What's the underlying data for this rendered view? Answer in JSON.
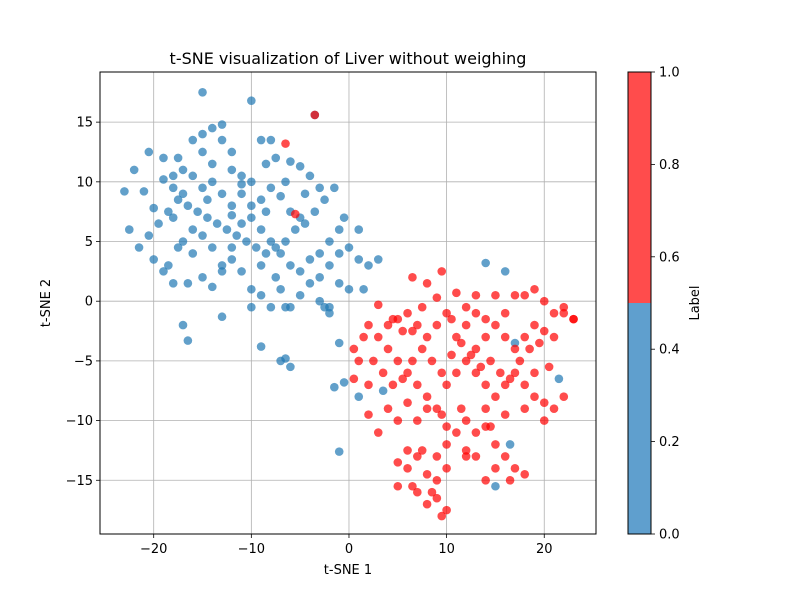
{
  "chart_data": {
    "type": "scatter",
    "title": "t-SNE visualization of Liver without weighing",
    "xlabel": "t-SNE 1",
    "ylabel": "t-SNE 2",
    "xlim": [
      -25.5,
      25.3
    ],
    "ylim": [
      -19.5,
      19.2
    ],
    "xticks": [
      -20,
      -10,
      0,
      10,
      20
    ],
    "yticks": [
      -15,
      -10,
      -5,
      0,
      5,
      10,
      15
    ],
    "xtick_labels": [
      "−20",
      "−10",
      "0",
      "10",
      "20"
    ],
    "ytick_labels": [
      "−15",
      "−10",
      "−5",
      "0",
      "5",
      "10",
      "15"
    ],
    "grid": true,
    "colorbar": {
      "label": "Label",
      "range": [
        0,
        1
      ],
      "ticks": [
        0.0,
        0.2,
        0.4,
        0.6,
        0.8,
        1.0
      ],
      "tick_labels": [
        "0.0",
        "0.2",
        "0.4",
        "0.6",
        "0.8",
        "1.0"
      ],
      "colors": [
        {
          "from": 0.0,
          "to": 0.5,
          "color": "#5f9fce"
        },
        {
          "from": 0.5,
          "to": 1.0,
          "color": "#ff4c4c"
        }
      ]
    },
    "colors": {
      "label_0": "#1f77b4",
      "label_1": "#ff0000"
    },
    "series": [
      {
        "label_value": 0,
        "points": [
          [
            -15,
            17.5
          ],
          [
            -10,
            16.8
          ],
          [
            -3.5,
            15.6
          ],
          [
            -23,
            9.2
          ],
          [
            -22,
            11
          ],
          [
            -20.5,
            12.5
          ],
          [
            -21,
            9.2
          ],
          [
            -19,
            10.2
          ],
          [
            -18,
            9.5
          ],
          [
            -17,
            11
          ],
          [
            -17.5,
            12
          ],
          [
            -16,
            13.5
          ],
          [
            -15,
            14
          ],
          [
            -14,
            14.5
          ],
          [
            -13,
            13.5
          ],
          [
            -12,
            12.5
          ],
          [
            -14,
            11.5
          ],
          [
            -12,
            11
          ],
          [
            -11,
            10.5
          ],
          [
            -10,
            10
          ],
          [
            -8.5,
            11.5
          ],
          [
            -7.5,
            12
          ],
          [
            -6,
            11.7
          ],
          [
            -5,
            11.3
          ],
          [
            -4,
            10.5
          ],
          [
            -3,
            9.5
          ],
          [
            -1.5,
            9.5
          ],
          [
            -2.5,
            8.5
          ],
          [
            -3.5,
            7.5
          ],
          [
            -4.5,
            6.5
          ],
          [
            -5.5,
            6
          ],
          [
            -6.5,
            5
          ],
          [
            -7.5,
            4.5
          ],
          [
            -8.5,
            4
          ],
          [
            -9.5,
            4.5
          ],
          [
            -10.5,
            5
          ],
          [
            -11.5,
            5.5
          ],
          [
            -12.5,
            6
          ],
          [
            -13.5,
            6.5
          ],
          [
            -14.5,
            7
          ],
          [
            -15.5,
            7.5
          ],
          [
            -16.5,
            8
          ],
          [
            -17.5,
            8.5
          ],
          [
            -18.5,
            7.5
          ],
          [
            -19.5,
            6.5
          ],
          [
            -20.5,
            5.5
          ],
          [
            -21.5,
            4.5
          ],
          [
            -22.5,
            6
          ],
          [
            -20,
            3.5
          ],
          [
            -19,
            2.5
          ],
          [
            -18,
            1.5
          ],
          [
            -16.5,
            1.5
          ],
          [
            -15,
            2
          ],
          [
            -14,
            1.2
          ],
          [
            -13,
            2.5
          ],
          [
            -12,
            3.5
          ],
          [
            -11,
            2.5
          ],
          [
            -10,
            1
          ],
          [
            -9,
            0.5
          ],
          [
            -8,
            -0.5
          ],
          [
            -7,
            1
          ],
          [
            -6,
            -0.5
          ],
          [
            -5,
            0.5
          ],
          [
            -4,
            1.5
          ],
          [
            -3,
            2
          ],
          [
            -2,
            3
          ],
          [
            -1,
            4
          ],
          [
            0,
            4.5
          ],
          [
            1,
            3.5
          ],
          [
            2,
            3
          ],
          [
            3,
            3.5
          ],
          [
            -1,
            1.5
          ],
          [
            0,
            1
          ],
          [
            -2.5,
            -0.5
          ],
          [
            -2,
            -1
          ],
          [
            -1,
            -3.5
          ],
          [
            -6,
            -5.5
          ],
          [
            -7,
            -5
          ],
          [
            -10,
            -0.5
          ],
          [
            -13,
            -1.3
          ],
          [
            -17,
            -2
          ],
          [
            -16.5,
            -3.3
          ],
          [
            -9,
            -3.8
          ],
          [
            -6.5,
            -4.8
          ],
          [
            -1,
            -12.6
          ],
          [
            -1.5,
            -7.2
          ],
          [
            -0.5,
            -6.8
          ],
          [
            1,
            -8
          ],
          [
            3.5,
            -7.5
          ],
          [
            14,
            3.2
          ],
          [
            16,
            2.5
          ],
          [
            17,
            -3.5
          ],
          [
            21.5,
            -6.5
          ],
          [
            16.5,
            -12
          ],
          [
            15,
            -15.5
          ],
          [
            -20,
            7.8
          ],
          [
            -18,
            7
          ],
          [
            -17,
            5
          ],
          [
            -16,
            6
          ],
          [
            -15,
            5.5
          ],
          [
            -14,
            4.5
          ],
          [
            -13,
            3
          ],
          [
            -12,
            4.5
          ],
          [
            -11,
            6.5
          ],
          [
            -10,
            7
          ],
          [
            -9,
            6
          ],
          [
            -8,
            5
          ],
          [
            -7,
            4
          ],
          [
            -6,
            3
          ],
          [
            -5,
            2.5
          ],
          [
            -4,
            3.5
          ],
          [
            -3,
            4
          ],
          [
            -2,
            5
          ],
          [
            -1,
            6
          ],
          [
            -0.5,
            7
          ],
          [
            1,
            6
          ],
          [
            -7,
            8.8
          ],
          [
            -8,
            9.5
          ],
          [
            -9,
            8.5
          ],
          [
            -10,
            8
          ],
          [
            -11,
            9
          ],
          [
            -12,
            8
          ],
          [
            -13,
            9
          ],
          [
            -14,
            10
          ],
          [
            -15,
            9.5
          ],
          [
            -16,
            10.5
          ],
          [
            -17,
            9
          ],
          [
            -18,
            10.5
          ],
          [
            -19,
            12
          ],
          [
            -15,
            12.5
          ],
          [
            -13,
            14.8
          ],
          [
            -9,
            13.5
          ],
          [
            -8,
            13.5
          ],
          [
            -6.5,
            10
          ],
          [
            -4.5,
            9
          ],
          [
            -5,
            7
          ],
          [
            -6,
            7.5
          ],
          [
            -12,
            7.2
          ],
          [
            -14.5,
            8.5
          ],
          [
            -16,
            4
          ],
          [
            -17.5,
            4.5
          ],
          [
            -18.5,
            3
          ],
          [
            -11,
            9.8
          ],
          [
            -8.5,
            7.5
          ],
          [
            -7.5,
            2
          ],
          [
            -9,
            3
          ],
          [
            -6.5,
            -0.5
          ],
          [
            -3,
            0
          ],
          [
            -2,
            -0.5
          ],
          [
            1.5,
            1
          ]
        ]
      },
      {
        "label_value": 1,
        "points": [
          [
            -6.5,
            13.2
          ],
          [
            -3.5,
            15.6
          ],
          [
            -5.5,
            7.3
          ],
          [
            6.5,
            2
          ],
          [
            9.5,
            2.5
          ],
          [
            8,
            1.5
          ],
          [
            11,
            0.7
          ],
          [
            13,
            0.5
          ],
          [
            3,
            -0.3
          ],
          [
            4.5,
            -1.5
          ],
          [
            5.5,
            -2.5
          ],
          [
            6,
            -1
          ],
          [
            7,
            -2
          ],
          [
            8,
            -3
          ],
          [
            9,
            -2
          ],
          [
            10,
            -1
          ],
          [
            11,
            -3
          ],
          [
            12,
            -2
          ],
          [
            13,
            -4
          ],
          [
            14,
            -3
          ],
          [
            15,
            -2
          ],
          [
            16,
            -3
          ],
          [
            17,
            -4
          ],
          [
            18,
            -3
          ],
          [
            19,
            -2
          ],
          [
            20,
            -2.5
          ],
          [
            21,
            -1
          ],
          [
            22,
            -0.5
          ],
          [
            23,
            -1.5
          ],
          [
            19,
            1
          ],
          [
            17,
            0.5
          ],
          [
            15,
            0.5
          ],
          [
            13,
            -1
          ],
          [
            2,
            -2
          ],
          [
            3,
            -3
          ],
          [
            4,
            -4
          ],
          [
            5,
            -5
          ],
          [
            6,
            -6
          ],
          [
            7,
            -7
          ],
          [
            8,
            -8
          ],
          [
            9,
            -9
          ],
          [
            10,
            -7
          ],
          [
            11,
            -6
          ],
          [
            12,
            -5
          ],
          [
            13,
            -6
          ],
          [
            14,
            -7
          ],
          [
            15,
            -8
          ],
          [
            16,
            -7
          ],
          [
            17,
            -6
          ],
          [
            18,
            -7
          ],
          [
            19,
            -8
          ],
          [
            20,
            -8.5
          ],
          [
            21,
            -9
          ],
          [
            22,
            -8
          ],
          [
            20,
            -10
          ],
          [
            18,
            -9
          ],
          [
            16,
            -9.5
          ],
          [
            14,
            -9
          ],
          [
            12,
            -10
          ],
          [
            14,
            -10.5
          ],
          [
            10,
            -10.5
          ],
          [
            8,
            -9
          ],
          [
            6,
            -8.5
          ],
          [
            4,
            -9
          ],
          [
            2,
            -9.5
          ],
          [
            1,
            -5
          ],
          [
            0.5,
            -4
          ],
          [
            1.5,
            -3
          ],
          [
            2.5,
            -5
          ],
          [
            3.5,
            -6
          ],
          [
            4.5,
            -7
          ],
          [
            5.5,
            -6.5
          ],
          [
            6.5,
            -5
          ],
          [
            7.5,
            -4
          ],
          [
            8.5,
            -5
          ],
          [
            9.5,
            -6
          ],
          [
            10.5,
            -4.5
          ],
          [
            11.5,
            -3.5
          ],
          [
            12.5,
            -4.5
          ],
          [
            13.5,
            -5.5
          ],
          [
            14.5,
            -5
          ],
          [
            15.5,
            -6
          ],
          [
            16.5,
            -6.5
          ],
          [
            17.5,
            -5
          ],
          [
            18.5,
            -4
          ],
          [
            19.5,
            -3.5
          ],
          [
            20.5,
            -5.5
          ],
          [
            3,
            -11
          ],
          [
            5,
            -13.5
          ],
          [
            6,
            -12.5
          ],
          [
            7,
            -13
          ],
          [
            8,
            -14.5
          ],
          [
            9,
            -13
          ],
          [
            10,
            -12
          ],
          [
            11,
            -11
          ],
          [
            12,
            -12.5
          ],
          [
            13,
            -13
          ],
          [
            14,
            -15
          ],
          [
            15,
            -14
          ],
          [
            16,
            -13
          ],
          [
            17,
            -14
          ],
          [
            18,
            -14.5
          ],
          [
            16.5,
            -15
          ],
          [
            5,
            -15.5
          ],
          [
            6,
            -14
          ],
          [
            7,
            -16
          ],
          [
            8,
            -17
          ],
          [
            9,
            -16.5
          ],
          [
            10,
            -17.5
          ],
          [
            9.5,
            -18
          ],
          [
            6.5,
            -15.5
          ],
          [
            7.5,
            -12.5
          ],
          [
            8.5,
            -16
          ],
          [
            14.5,
            -10.5
          ],
          [
            13,
            -11
          ],
          [
            11.5,
            -9
          ],
          [
            9.5,
            -9.5
          ],
          [
            7,
            -10
          ],
          [
            5,
            -10
          ],
          [
            2,
            -7
          ],
          [
            0.5,
            -6.5
          ],
          [
            4,
            -2
          ],
          [
            5,
            -1.5
          ],
          [
            6.5,
            -2.5
          ],
          [
            7.5,
            -0.5
          ],
          [
            9,
            0.3
          ],
          [
            10.5,
            -1.5
          ],
          [
            12,
            -0.5
          ],
          [
            14,
            -1.5
          ],
          [
            16,
            -1
          ],
          [
            18,
            0.5
          ],
          [
            20,
            0
          ],
          [
            21,
            -3
          ],
          [
            22,
            -1
          ],
          [
            23,
            -1.5
          ],
          [
            19,
            -6
          ],
          [
            15,
            -12
          ],
          [
            12,
            -13
          ],
          [
            10,
            -14
          ],
          [
            9,
            -15
          ]
        ]
      }
    ]
  }
}
